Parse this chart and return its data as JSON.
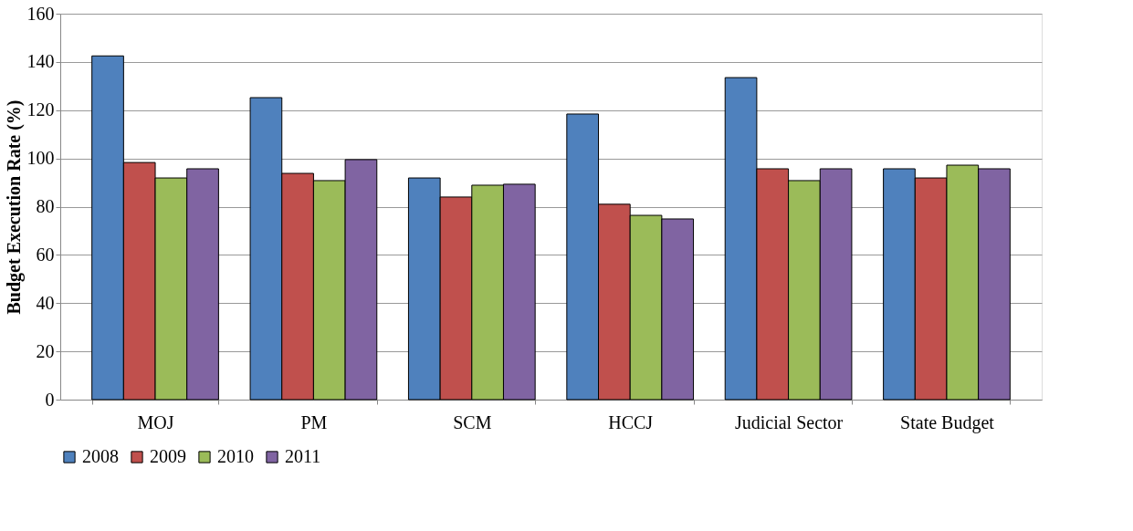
{
  "chart_data": {
    "type": "bar",
    "ylabel": "Budget Execution Rate (%)",
    "categories": [
      "MOJ",
      "PM",
      "SCM",
      "HCCJ",
      "Judicial Sector",
      "State Budget"
    ],
    "series": [
      {
        "name": "2008",
        "color": "#4f81bd",
        "values": [
          142.5,
          125.2,
          91.9,
          118.4,
          133.5,
          95.7
        ]
      },
      {
        "name": "2009",
        "color": "#c0504d",
        "values": [
          98.3,
          93.8,
          84.0,
          81.0,
          95.7,
          91.9
        ]
      },
      {
        "name": "2010",
        "color": "#9bbb59",
        "values": [
          91.9,
          90.8,
          88.9,
          76.4,
          90.8,
          97.2
        ]
      },
      {
        "name": "2011",
        "color": "#8064a2",
        "values": [
          95.7,
          99.5,
          89.3,
          74.9,
          95.7,
          95.7
        ]
      }
    ],
    "ylim": [
      0,
      160
    ],
    "yticks": [
      0,
      20,
      40,
      60,
      80,
      100,
      120,
      140,
      160
    ],
    "grid": "y",
    "legend": "bottom"
  }
}
